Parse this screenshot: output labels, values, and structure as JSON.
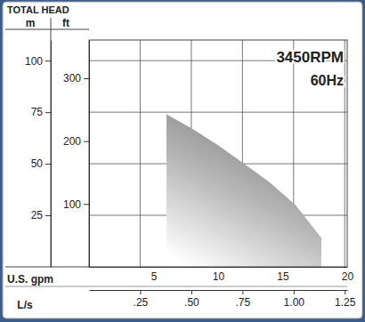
{
  "chart_data": {
    "type": "area",
    "ylabel": "TOTAL HEAD",
    "y_unit": "m",
    "y2_unit": "ft",
    "xlabel": "U.S. gpm",
    "x2label": "L/s",
    "annotations": [
      "3450RPM",
      "60Hz"
    ],
    "x": [
      6,
      8,
      10,
      12,
      14,
      16,
      18
    ],
    "values": [
      74,
      67,
      59,
      50,
      41,
      30,
      14
    ],
    "color": "#7c7c7c",
    "xlim": [
      0,
      20
    ],
    "xticks": [
      5,
      10,
      15,
      20
    ],
    "x2lim": [
      0,
      1.262
    ],
    "x2ticks": [
      {
        "value": 0.25,
        "label": ".25"
      },
      {
        "value": 0.5,
        "label": ".50"
      },
      {
        "value": 0.75,
        "label": ".75"
      },
      {
        "value": 1,
        "label": "1.00"
      },
      1.25
    ],
    "ylim": [
      0,
      110
    ],
    "yticks": [
      25,
      50,
      75,
      100
    ],
    "y2lim": [
      0,
      360.9
    ],
    "y2ticks": [
      100,
      200,
      300
    ],
    "grid": true
  }
}
